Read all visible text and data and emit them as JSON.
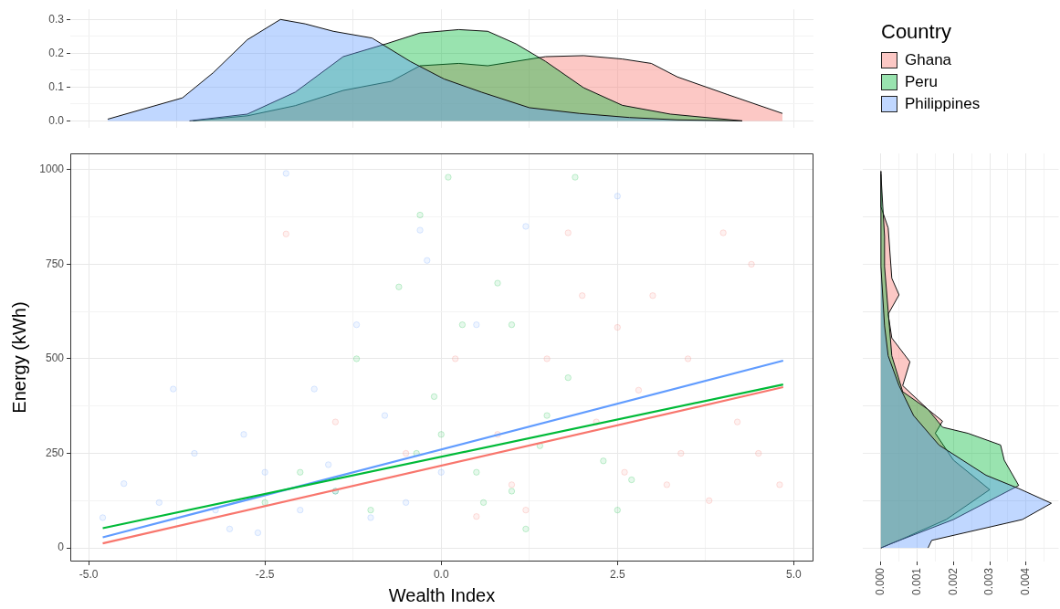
{
  "chart_data": [
    {
      "type": "area",
      "legend": "right",
      "legend_title": "Country",
      "grid": true,
      "tick_labels": "y",
      "xlim": [
        -5.26,
        5.28
      ],
      "ylim": [
        -0.02,
        0.33
      ],
      "xticks": [
        {
          "value": -5,
          "label": null
        },
        {
          "value": -3.75,
          "label": null
        },
        {
          "value": -2.5,
          "label": null
        },
        {
          "value": -1.25,
          "label": null
        },
        {
          "value": 0,
          "label": null
        },
        {
          "value": 1.25,
          "label": null
        },
        {
          "value": 2.5,
          "label": null
        },
        {
          "value": 3.75,
          "label": null
        },
        {
          "value": 5,
          "label": null
        }
      ],
      "yticks": [
        {
          "value": 0,
          "label": "0.0"
        },
        {
          "value": 0.05,
          "label": null
        },
        {
          "value": 0.1,
          "label": "0.1"
        },
        {
          "value": 0.15,
          "label": null
        },
        {
          "value": 0.2,
          "label": "0.2"
        },
        {
          "value": 0.25,
          "label": null
        },
        {
          "value": 0.3,
          "label": "0.3"
        }
      ],
      "series": [
        {
          "name": "Ghana",
          "color": "#f8766d",
          "x": [
            -3.52,
            -2.75,
            -2.07,
            -1.39,
            -0.71,
            -0.3,
            0.25,
            0.66,
            1.48,
            2.02,
            2.57,
            2.98,
            3.35,
            4.06,
            4.84
          ],
          "values": [
            0,
            0.015,
            0.045,
            0.09,
            0.117,
            0.163,
            0.17,
            0.163,
            0.19,
            0.193,
            0.183,
            0.17,
            0.13,
            0.078,
            0.022
          ]
        },
        {
          "name": "Peru",
          "color": "#00ba38",
          "x": [
            -3.57,
            -2.75,
            -2.07,
            -1.39,
            -0.78,
            -0.3,
            0.25,
            0.66,
            1.06,
            1.48,
            2.02,
            2.57,
            3.25,
            4.27
          ],
          "values": [
            0,
            0.02,
            0.085,
            0.19,
            0.228,
            0.26,
            0.27,
            0.265,
            0.228,
            0.176,
            0.098,
            0.046,
            0.02,
            0
          ]
        },
        {
          "name": "Philippines",
          "color": "#619cff",
          "x": [
            -4.73,
            -3.67,
            -3.23,
            -2.75,
            -2.28,
            -1.93,
            -1.53,
            -0.98,
            -0.44,
            0.04,
            0.57,
            1.25,
            1.96,
            2.67,
            3.35,
            4.27
          ],
          "values": [
            0.005,
            0.068,
            0.143,
            0.24,
            0.3,
            0.287,
            0.265,
            0.245,
            0.176,
            0.124,
            0.085,
            0.039,
            0.022,
            0.01,
            0.003,
            0
          ]
        }
      ]
    },
    {
      "type": "scatter",
      "xlabel": "Wealth Index",
      "ylabel": "Energy (kWh)",
      "grid": true,
      "marker": "circle",
      "xlim": [
        -5.26,
        5.28
      ],
      "ylim": [
        -36,
        1043
      ],
      "xticks": [
        {
          "value": -5,
          "label": "-5.0"
        },
        {
          "value": -3.75,
          "label": null
        },
        {
          "value": -2.5,
          "label": "-2.5"
        },
        {
          "value": -1.25,
          "label": null
        },
        {
          "value": 0,
          "label": "0.0"
        },
        {
          "value": 1.25,
          "label": null
        },
        {
          "value": 2.5,
          "label": "2.5"
        },
        {
          "value": 3.75,
          "label": null
        },
        {
          "value": 5,
          "label": "5.0"
        }
      ],
      "yticks": [
        0,
        {
          "value": 125,
          "label": null
        },
        250,
        {
          "value": 375,
          "label": null
        },
        500,
        {
          "value": 625,
          "label": null
        },
        750,
        {
          "value": 875,
          "label": null
        },
        1000
      ],
      "series": [
        {
          "type": "scatter",
          "color": "#f8766d",
          "x": [
            1.5,
            2,
            2.5,
            3,
            3.5,
            4,
            4.5,
            2.2,
            3.2,
            1,
            0.5,
            -0.5,
            -1.5,
            2.8,
            4.2,
            3.8,
            1.8,
            0.2,
            4.8,
            2.6,
            3.4,
            1.2,
            -2.2,
            0.8,
            4.4
          ],
          "values": [
            500,
            667,
            583,
            667,
            500,
            833,
            250,
            333,
            167,
            167,
            83,
            250,
            333,
            417,
            333,
            125,
            833,
            500,
            167,
            200,
            250,
            100,
            830,
            300,
            750
          ]
        },
        {
          "type": "scatter",
          "color": "#00ba38",
          "x": [
            0,
            0.5,
            -0.35,
            1,
            -1,
            1.5,
            0.3,
            -0.6,
            1.8,
            2.3,
            -1.5,
            0.8,
            -2,
            1.2,
            0.1,
            1.9,
            -0.3,
            2.7,
            -1.2,
            0.6,
            1.4,
            -0.1,
            2.5,
            -2.5,
            1
          ],
          "values": [
            300,
            200,
            250,
            150,
            100,
            350,
            590,
            690,
            450,
            230,
            150,
            700,
            200,
            50,
            980,
            980,
            880,
            180,
            500,
            120,
            270,
            400,
            100,
            120,
            590
          ]
        },
        {
          "type": "scatter",
          "color": "#619cff",
          "x": [
            -3,
            -2.5,
            -2,
            -1.5,
            -1,
            -3.5,
            -4,
            -2.8,
            -1.8,
            -0.5,
            0,
            -4.5,
            -3.2,
            -2.2,
            -1.2,
            -0.3,
            0.5,
            -0.8,
            -2.6,
            -3.8,
            1.2,
            2.5,
            -1.6,
            -0.2,
            -4.8
          ],
          "values": [
            50,
            200,
            100,
            150,
            80,
            250,
            120,
            300,
            420,
            120,
            200,
            170,
            100,
            990,
            590,
            840,
            590,
            350,
            40,
            420,
            850,
            930,
            220,
            760,
            80
          ]
        },
        {
          "type": "line",
          "marker": "none",
          "color": "#f8766d",
          "x": [
            -4.8,
            4.85
          ],
          "values": [
            12,
            425
          ]
        },
        {
          "type": "line",
          "marker": "none",
          "color": "#00ba38",
          "x": [
            -4.8,
            4.85
          ],
          "values": [
            52,
            432
          ]
        },
        {
          "type": "line",
          "marker": "none",
          "color": "#619cff",
          "x": [
            -4.8,
            4.85
          ],
          "values": [
            28,
            495
          ]
        }
      ]
    },
    {
      "type": "area",
      "orientation": "horizontal",
      "grid": true,
      "tick_labels": "x",
      "xlim": [
        -0.0005,
        0.0049
      ],
      "ylim": [
        -36,
        1043
      ],
      "xticks": [
        {
          "value": 0,
          "label": "0.000"
        },
        {
          "value": 0.0005,
          "label": null
        },
        {
          "value": 0.001,
          "label": "0.001"
        },
        {
          "value": 0.0015,
          "label": null
        },
        {
          "value": 0.002,
          "label": "0.002"
        },
        {
          "value": 0.0025,
          "label": null
        },
        {
          "value": 0.003,
          "label": "0.003"
        },
        {
          "value": 0.0035,
          "label": null
        },
        {
          "value": 0.004,
          "label": "0.004"
        },
        {
          "value": 0.0045,
          "label": null
        }
      ],
      "yticks": [
        {
          "value": 0,
          "label": null
        },
        {
          "value": 125,
          "label": null
        },
        {
          "value": 250,
          "label": null
        },
        {
          "value": 375,
          "label": null
        },
        {
          "value": 500,
          "label": null
        },
        {
          "value": 625,
          "label": null
        },
        {
          "value": 750,
          "label": null
        },
        {
          "value": 875,
          "label": null
        },
        {
          "value": 1000,
          "label": null
        }
      ],
      "series": [
        {
          "color": "#f8766d",
          "x": [
            0,
            20,
            75,
            154,
            232,
            303,
            335,
            366,
            429,
            492,
            555,
            618,
            669,
            713,
            846,
            902,
            996
          ],
          "values": [
            0,
            0.0005,
            0.0018,
            0.003,
            0.002,
            0.0015,
            0.0017,
            0.0013,
            0.0006,
            0.0008,
            0.0003,
            0.0002,
            0.0005,
            0.0003,
            0.0002,
            0,
            0
          ]
        },
        {
          "color": "#00ba38",
          "x": [
            0,
            12,
            75,
            165,
            232,
            272,
            303,
            319,
            366,
            413,
            508,
            626,
            744,
            823,
            988
          ],
          "values": [
            0,
            0.0003,
            0.002,
            0.0038,
            0.0034,
            0.0033,
            0.0024,
            0.0017,
            0.0013,
            0.0006,
            0.0003,
            0.0002,
            0.0001,
            0.0001,
            0
          ]
        },
        {
          "color": "#619cff",
          "x": [
            0,
            20,
            75,
            118,
            157,
            192,
            272,
            350,
            429,
            508,
            587,
            744,
            996
          ],
          "values": [
            0.0013,
            0.0014,
            0.0039,
            0.0047,
            0.0038,
            0.0029,
            0.0016,
            0.0009,
            0.0005,
            0.0002,
            0.0001,
            0,
            0
          ]
        }
      ]
    }
  ]
}
